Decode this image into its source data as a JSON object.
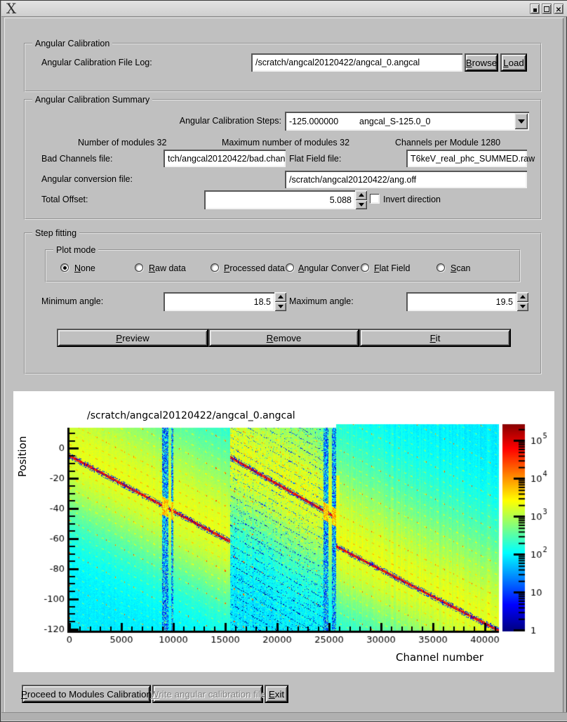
{
  "window": {
    "icons": {
      "app_icon": "x-logo",
      "titlebar_buttons": [
        "minimize-icon",
        "maximize-icon",
        "close-icon"
      ],
      "combo_arrow": "chevron-down-icon",
      "spinner": [
        "arrow-up-icon",
        "arrow-down-icon"
      ]
    }
  },
  "angular_calibration": {
    "group_title": "Angular Calibration",
    "file_log_label": "Angular Calibration File Log:",
    "file_log_value": "/scratch/angcal20120422/angcal_0.angcal",
    "browse_button": {
      "label": "Browse",
      "underline": 0
    },
    "load_button": {
      "label": "Load",
      "underline": 0
    }
  },
  "summary": {
    "group_title": "Angular Calibration Summary",
    "steps_label": "Angular Calibration Steps:",
    "steps_value_number": "-125.000000",
    "steps_value_name": "angcal_S-125.0_0",
    "modules_info": "Number of modules 32",
    "max_modules_info": "Maximum number of modules 32",
    "channels_info": "Channels per Module 1280",
    "bad_channels_label": "Bad Channels file:",
    "bad_channels_value": "tch/angcal20120422/bad.chan",
    "flat_field_label": "Flat Field file:",
    "flat_field_value": "T6keV_real_phc_SUMMED.raw",
    "angular_conversion_label": "Angular conversion file:",
    "angular_conversion_value": "/scratch/angcal20120422/ang.off",
    "total_offset_label": "Total Offset:",
    "total_offset_value": "5.088",
    "invert_direction_label": "Invert direction",
    "invert_direction_checked": false
  },
  "step_fitting": {
    "group_title": "Step fitting",
    "plot_mode": {
      "group_title": "Plot mode",
      "options": [
        {
          "label": "None",
          "underline": 0,
          "selected": true
        },
        {
          "label": "Raw data",
          "underline": 0,
          "selected": false
        },
        {
          "label": "Processed data",
          "underline": 0,
          "selected": false
        },
        {
          "label": "Angular Conver",
          "underline": 0,
          "selected": false
        },
        {
          "label": "Flat Field",
          "underline": 0,
          "selected": false
        },
        {
          "label": "Scan",
          "underline": 0,
          "selected": false
        }
      ]
    },
    "min_angle_label": "Minimum angle:",
    "min_angle_value": "18.5",
    "max_angle_label": "Maximum angle:",
    "max_angle_value": "19.5",
    "preview_button": {
      "label": "Preview",
      "underline": 0
    },
    "remove_button": {
      "label": "Remove",
      "underline": 0
    },
    "fit_button": {
      "label": "Fit",
      "underline": 0
    }
  },
  "footer": {
    "proceed_button": {
      "label": "Proceed to Modules Calibration",
      "underline": 0,
      "enabled": true
    },
    "write_button": {
      "label": "Write angular calibration file",
      "underline": 0,
      "enabled": false
    },
    "exit_button": {
      "label": "Exit",
      "underline": 0,
      "enabled": true
    }
  },
  "chart_data": {
    "type": "heatmap",
    "title": "/scratch/angcal20120422/angcal_0.angcal",
    "xlabel": "Channel number",
    "ylabel": "Position",
    "xlim": [
      0,
      41350
    ],
    "ylim": [
      -121,
      16
    ],
    "x_ticks": [
      0,
      5000,
      10000,
      15000,
      20000,
      25000,
      30000,
      35000,
      40000
    ],
    "x_minor_step": 1000,
    "y_ticks": [
      0,
      -20,
      -40,
      -60,
      -80,
      -100,
      -120
    ],
    "y_minor_step": 5,
    "grid": false,
    "colormap": "jet",
    "colorbar": {
      "scale": "log",
      "min": 1,
      "max": 300000,
      "tick_labels": [
        "1",
        "10",
        "10^2",
        "10^3",
        "10^4",
        "10^5"
      ],
      "position": "right"
    },
    "scan_line_segments": [
      {
        "ch": [
          0,
          15500
        ],
        "position": [
          -5,
          -62
        ]
      },
      {
        "ch": [
          15500,
          25650
        ],
        "position": [
          -6,
          -46
        ]
      },
      {
        "ch": [
          25650,
          41350
        ],
        "position": [
          -65,
          -121
        ]
      }
    ],
    "noisy_column_bands_ch": [
      [
        8950,
        9500
      ],
      [
        9830,
        10030
      ],
      [
        24450,
        24950
      ],
      [
        25250,
        25650
      ]
    ],
    "speckle_region_ch": [
      15500,
      24450
    ],
    "bright_column": {
      "ch": [
        25650,
        26000
      ],
      "position": [
        -18,
        -62
      ]
    },
    "top_edge_step": {
      "ch": 25650,
      "left_top_position": 13.5,
      "right_top_position": 16
    },
    "harmonic_line_spacing_pos": 7.2,
    "strong_harmonic_spacing_pos": 21.6
  }
}
